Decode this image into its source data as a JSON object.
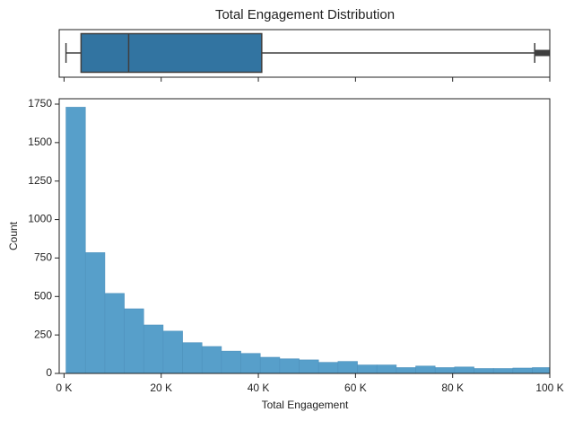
{
  "chart_data": [
    {
      "type": "box",
      "title": "Total Engagement Distribution",
      "whisker_low": 400,
      "q1": 3500,
      "median": 13300,
      "q3": 40700,
      "whisker_high": 96900,
      "outliers": [
        97500,
        98200,
        98900,
        99500,
        100000
      ],
      "color": "#3274a1",
      "line_color": "#3f3f3f",
      "xlim": [
        -1000,
        100000
      ]
    },
    {
      "type": "histogram",
      "xlabel": "Total Engagement",
      "ylabel": "Count",
      "bins": [
        400,
        4400,
        8400,
        12400,
        16400,
        20400,
        24400,
        28400,
        32400,
        36400,
        40400,
        44400,
        48400,
        52400,
        56400,
        60400,
        64400,
        68400,
        72400,
        76400,
        80400,
        84400,
        88400,
        92400,
        96400,
        100400
      ],
      "values": [
        1730,
        785,
        520,
        420,
        315,
        275,
        200,
        175,
        145,
        130,
        105,
        95,
        88,
        72,
        78,
        55,
        55,
        38,
        48,
        38,
        42,
        32,
        32,
        35,
        38
      ],
      "color": "#579fca",
      "xlim": [
        -1000,
        100000
      ],
      "ylim": [
        0,
        1785
      ],
      "xticks": [
        {
          "value": 0,
          "label": "0 K"
        },
        {
          "value": 20000,
          "label": "20 K"
        },
        {
          "value": 40000,
          "label": "40 K"
        },
        {
          "value": 60000,
          "label": "60 K"
        },
        {
          "value": 80000,
          "label": "80 K"
        },
        {
          "value": 100000,
          "label": "100 K"
        }
      ],
      "yticks": [
        0,
        250,
        500,
        750,
        1000,
        1250,
        1500,
        1750
      ]
    }
  ]
}
